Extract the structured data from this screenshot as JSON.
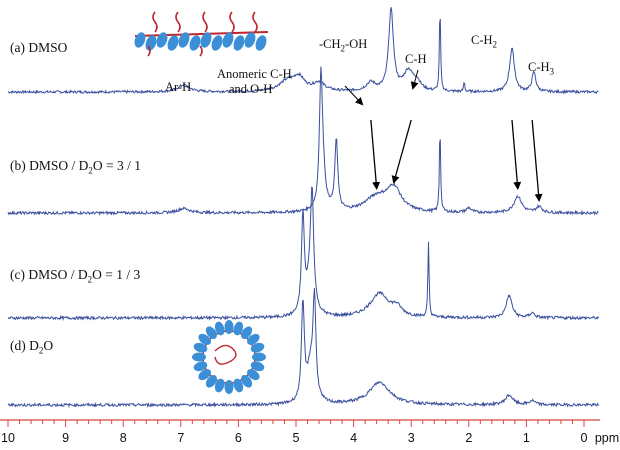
{
  "chart_data": {
    "type": "line",
    "title": "",
    "xlabel": "ppm",
    "x_reversed": true,
    "xlim": [
      10,
      -0.3
    ],
    "x_ticks": [
      {
        "value": 10,
        "label": "10"
      },
      {
        "value": 9,
        "label": "9"
      },
      {
        "value": 8,
        "label": "8"
      },
      {
        "value": 7,
        "label": "7"
      },
      {
        "value": 6,
        "label": "6"
      },
      {
        "value": 5,
        "label": "5"
      },
      {
        "value": 4,
        "label": "4"
      },
      {
        "value": 3,
        "label": "3"
      },
      {
        "value": 2,
        "label": "2"
      },
      {
        "value": 1,
        "label": "1"
      },
      {
        "value": 0,
        "label": "0"
      }
    ],
    "axis_unit_label": "ppm",
    "grid": false,
    "line_color": "#3a4f9e",
    "axis_color": "#d8463a",
    "series": [
      {
        "name": "(a) DMSO",
        "label_main": "(a) DMSO",
        "label_sub": "",
        "label_tail": "",
        "peaks": [
          {
            "x": 6.95,
            "h": 0.1,
            "w": 0.12
          },
          {
            "x": 5.15,
            "h": 0.14,
            "w": 0.18
          },
          {
            "x": 4.95,
            "h": 0.18,
            "w": 0.12
          },
          {
            "x": 4.6,
            "h": 0.12,
            "w": 0.12
          },
          {
            "x": 3.7,
            "h": 0.12,
            "w": 0.1
          },
          {
            "x": 3.35,
            "h": 1.15,
            "w": 0.05
          },
          {
            "x": 3.05,
            "h": 0.28,
            "w": 0.1
          },
          {
            "x": 2.9,
            "h": 0.12,
            "w": 0.08
          },
          {
            "x": 2.5,
            "h": 1.2,
            "w": 0.012
          },
          {
            "x": 2.08,
            "h": 0.14,
            "w": 0.012
          },
          {
            "x": 1.25,
            "h": 0.62,
            "w": 0.05
          },
          {
            "x": 0.87,
            "h": 0.28,
            "w": 0.04
          }
        ],
        "annotations": [
          {
            "text": "Ar-H",
            "x": 7.0
          },
          {
            "text": "Anomeric C-H",
            "x": 4.7
          },
          {
            "text": "and O-H",
            "x": 4.7
          },
          {
            "text": "-CH",
            "sub": "2",
            "tail": "-OH",
            "x": 3.9
          },
          {
            "text": "C-H",
            "x": 2.95
          },
          {
            "text": "C-H",
            "sub": "2",
            "tail": "",
            "x": 1.25
          },
          {
            "text": "C-H",
            "sub": "3",
            "tail": "",
            "x": 0.75
          }
        ]
      },
      {
        "name": "(b) DMSO / D2O = 3 / 1",
        "label_main": "(b) DMSO / D",
        "label_sub": "2",
        "label_tail": "O = 3 / 1",
        "peaks": [
          {
            "x": 6.95,
            "h": 0.06,
            "w": 0.12
          },
          {
            "x": 4.57,
            "h": 1.15,
            "w": 0.025
          },
          {
            "x": 4.55,
            "h": 0.9,
            "w": 0.05
          },
          {
            "x": 4.3,
            "h": 0.95,
            "w": 0.03
          },
          {
            "x": 3.6,
            "h": 0.2,
            "w": 0.25
          },
          {
            "x": 3.3,
            "h": 0.3,
            "w": 0.15
          },
          {
            "x": 2.5,
            "h": 1.15,
            "w": 0.012
          },
          {
            "x": 2.0,
            "h": 0.06,
            "w": 0.05
          },
          {
            "x": 1.15,
            "h": 0.22,
            "w": 0.08
          },
          {
            "x": 0.78,
            "h": 0.08,
            "w": 0.06
          }
        ]
      },
      {
        "name": "(c) DMSO / D2O = 1 / 3",
        "label_main": "(c) DMSO / D",
        "label_sub": "2",
        "label_tail": "O = 1 / 3",
        "peaks": [
          {
            "x": 4.88,
            "h": 1.2,
            "w": 0.03
          },
          {
            "x": 4.72,
            "h": 1.2,
            "w": 0.03
          },
          {
            "x": 4.75,
            "h": 0.5,
            "w": 0.07
          },
          {
            "x": 3.55,
            "h": 0.3,
            "w": 0.2
          },
          {
            "x": 3.25,
            "h": 0.1,
            "w": 0.1
          },
          {
            "x": 2.7,
            "h": 0.92,
            "w": 0.012
          },
          {
            "x": 1.3,
            "h": 0.28,
            "w": 0.06
          },
          {
            "x": 0.9,
            "h": 0.06,
            "w": 0.05
          }
        ]
      },
      {
        "name": "(d) D2O",
        "label_main": "(d) D",
        "label_sub": "2",
        "label_tail": "O",
        "peaks": [
          {
            "x": 4.88,
            "h": 1.2,
            "w": 0.03
          },
          {
            "x": 4.68,
            "h": 1.2,
            "w": 0.03
          },
          {
            "x": 4.75,
            "h": 0.45,
            "w": 0.07
          },
          {
            "x": 3.55,
            "h": 0.28,
            "w": 0.22
          },
          {
            "x": 1.3,
            "h": 0.12,
            "w": 0.08
          },
          {
            "x": 0.9,
            "h": 0.05,
            "w": 0.06
          }
        ]
      }
    ],
    "shift_arrows": [
      {
        "from_x": 3.7,
        "to_x": 3.6
      },
      {
        "from_x": 3.0,
        "to_x": 3.3
      },
      {
        "from_x": 1.25,
        "to_x": 1.15
      },
      {
        "from_x": 0.9,
        "to_x": 0.78
      }
    ],
    "insets": [
      {
        "kind": "extended-polymer-chain",
        "near_series": 0,
        "colors": [
          "#3a8fd6",
          "#c0262d"
        ]
      },
      {
        "kind": "micelle-aggregate",
        "near_series": 3,
        "colors": [
          "#3a8fd6",
          "#c0262d"
        ]
      }
    ]
  }
}
